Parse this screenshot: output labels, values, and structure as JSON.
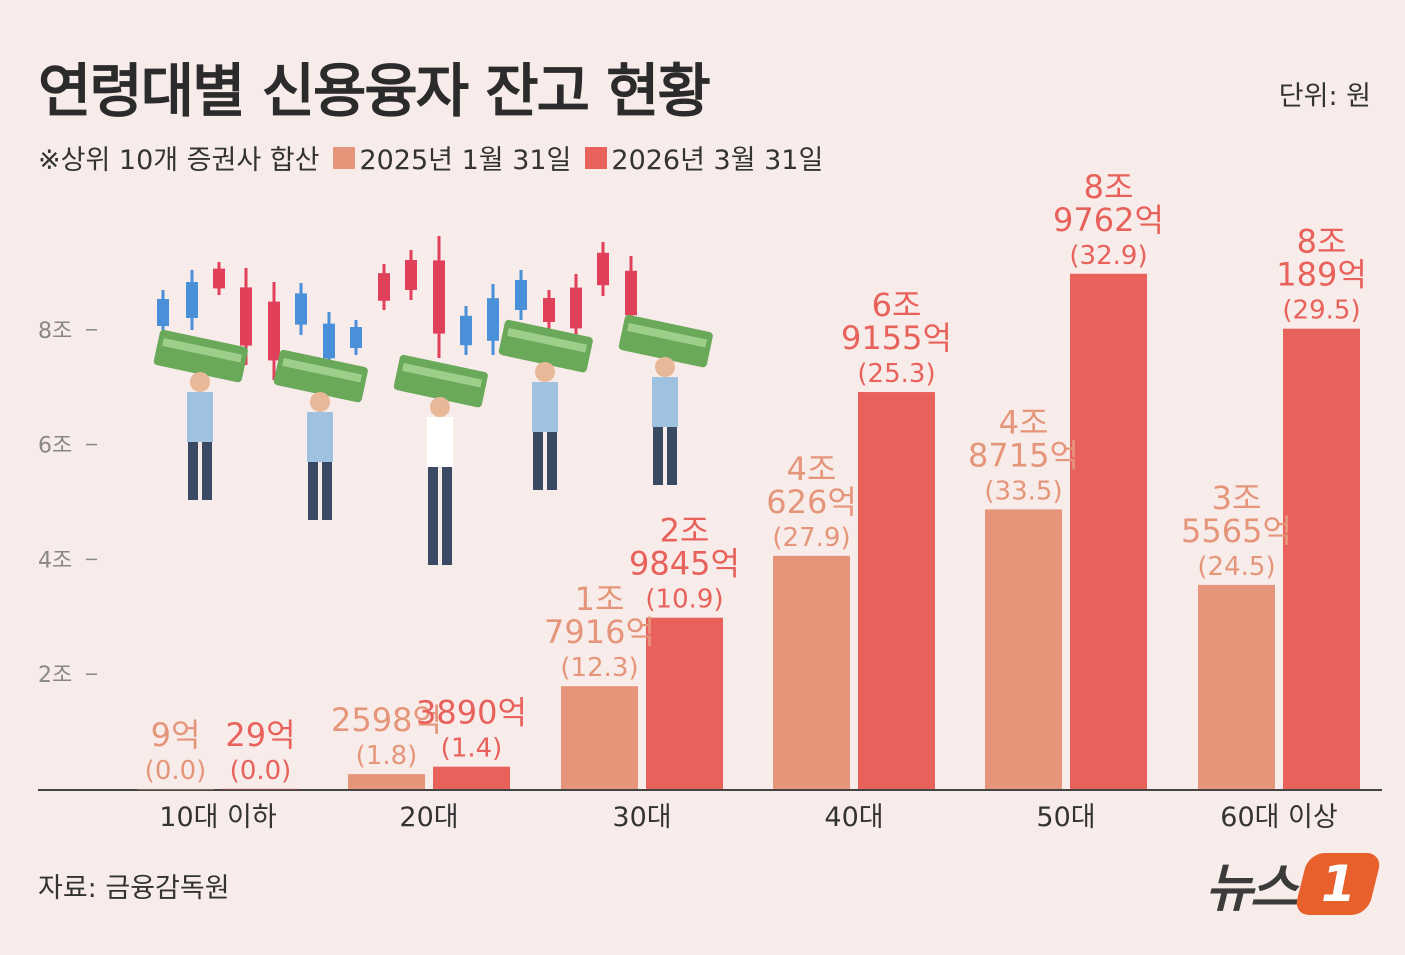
{
  "title": "연령대별 신용융자 잔고 현황",
  "unit": "단위: 원",
  "note": "※상위 10개 증권사 합산",
  "source": "자료: 금융감독원",
  "logo": {
    "text": "뉴스",
    "badge": "1"
  },
  "colors": {
    "series1": "#e5967a",
    "series2": "#e8615a",
    "axis": "#888888",
    "background": "#f7ecea"
  },
  "chart_data": {
    "type": "bar",
    "categories": [
      "10대 이하",
      "20대",
      "30대",
      "40대",
      "50대",
      "60대 이상"
    ],
    "ylim": [
      0,
      10
    ],
    "yticks": [
      {
        "value": 2,
        "label": "2조"
      },
      {
        "value": 4,
        "label": "4조"
      },
      {
        "value": 6,
        "label": "6조"
      },
      {
        "value": 8,
        "label": "8조"
      }
    ],
    "series": [
      {
        "name": "2025년 1월 31일",
        "values": [
          0.0009,
          0.2598,
          1.7916,
          4.0626,
          4.8715,
          3.5565
        ],
        "labels": [
          [
            "9억",
            "(0.0)"
          ],
          [
            "2598억",
            "(1.8)"
          ],
          [
            "1조",
            "7916억",
            "(12.3)"
          ],
          [
            "4조",
            "626억",
            "(27.9)"
          ],
          [
            "4조",
            "8715억",
            "(33.5)"
          ],
          [
            "3조",
            "5565억",
            "(24.5)"
          ]
        ]
      },
      {
        "name": "2026년 3월 31일",
        "values": [
          0.0029,
          0.389,
          2.9845,
          6.9155,
          8.9762,
          8.0189
        ],
        "labels": [
          [
            "29억",
            "(0.0)"
          ],
          [
            "3890억",
            "(1.4)"
          ],
          [
            "2조",
            "9845억",
            "(10.9)"
          ],
          [
            "6조",
            "9155억",
            "(25.3)"
          ],
          [
            "8조",
            "9762억",
            "(32.9)"
          ],
          [
            "8조",
            "189억",
            "(29.5)"
          ]
        ]
      }
    ]
  }
}
